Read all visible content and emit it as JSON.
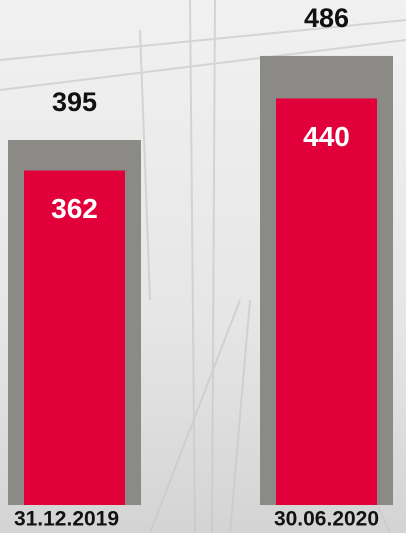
{
  "chart_data": {
    "type": "bar",
    "categories": [
      "31.12.2019",
      "30.06.2020"
    ],
    "series": [
      {
        "color": "#8c8a86",
        "values": [
          395,
          486
        ]
      },
      {
        "color": "#e2003b",
        "values": [
          362,
          440
        ]
      }
    ]
  }
}
